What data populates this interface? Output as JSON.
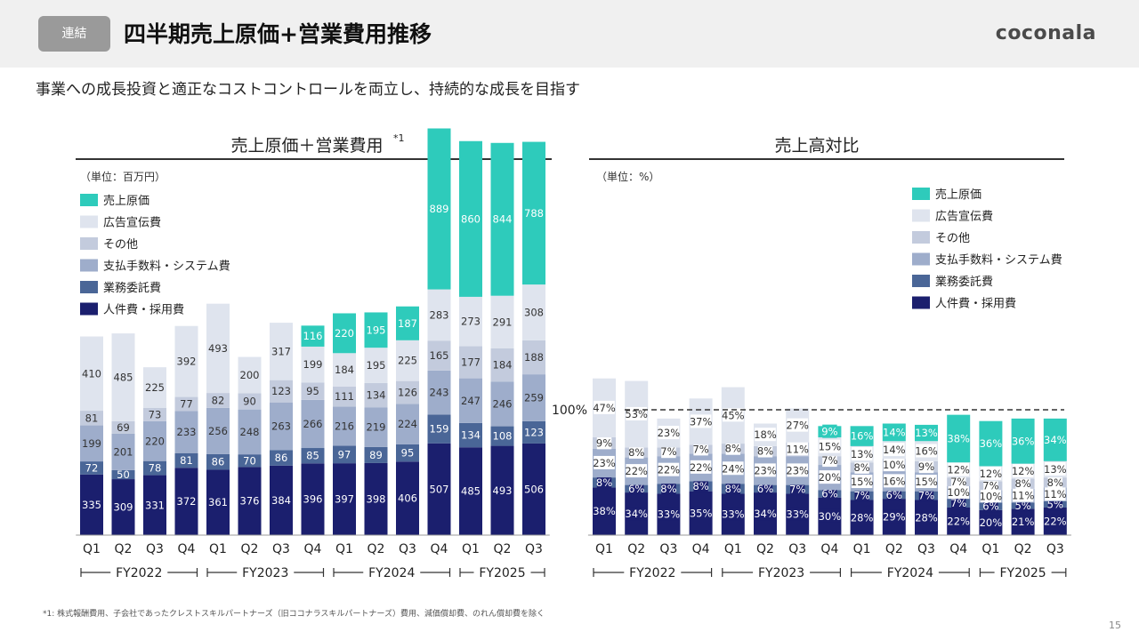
{
  "header": {
    "badge": "連結",
    "title": "四半期売上原価+営業費用推移",
    "logo": "coconala"
  },
  "subtitle": "事業への成長投資と適正なコストコントロールを両立し、持続的な成長を目指す",
  "footnote": "*1: 株式報酬費用、子会社であったクレストスキルパートナーズ（旧ココナラスキルパートナーズ）費用、減価償却費、のれん償却費を除く",
  "page_number": "15",
  "colors": {
    "cogs": "#2ecbbb",
    "ad": "#dfe4ee",
    "other": "#c3cbdd",
    "fees": "#9eadcb",
    "outsourcing": "#4a6697",
    "personnel": "#1b1f6e"
  },
  "chart_data": [
    {
      "type": "bar",
      "stacked": true,
      "title": "売上原価＋営業費用",
      "title_superscript": "*1",
      "unit_label": "（単位：百万円）",
      "categories": [
        "Q1",
        "Q2",
        "Q3",
        "Q4",
        "Q1",
        "Q2",
        "Q3",
        "Q4",
        "Q1",
        "Q2",
        "Q3",
        "Q4",
        "Q1",
        "Q2",
        "Q3"
      ],
      "fiscal_years": [
        {
          "label": "FY2022",
          "start": 0,
          "end": 3
        },
        {
          "label": "FY2023",
          "start": 4,
          "end": 7
        },
        {
          "label": "FY2024",
          "start": 8,
          "end": 11
        },
        {
          "label": "FY2025",
          "start": 12,
          "end": 14
        }
      ],
      "legend": [
        "売上原価",
        "広告宣伝費",
        "その他",
        "支払手数料・システム費",
        "業務委託費",
        "人件費・採用費"
      ],
      "series": [
        {
          "name": "人件費・採用費",
          "values": [
            335,
            309,
            331,
            372,
            361,
            376,
            384,
            396,
            397,
            398,
            406,
            507,
            485,
            493,
            506
          ],
          "labels": [
            "335",
            "309",
            "331",
            "372",
            "361",
            "376",
            "384",
            "396",
            "397",
            "398",
            "406",
            "507",
            "485",
            "493",
            "506"
          ]
        },
        {
          "name": "業務委託費",
          "values": [
            72,
            50,
            78,
            81,
            86,
            70,
            86,
            85,
            97,
            89,
            95,
            159,
            134,
            108,
            123
          ],
          "labels": [
            "72",
            "50",
            "78",
            "81",
            "86",
            "70",
            "86",
            "85",
            "97",
            "89",
            "95",
            "159",
            "134",
            "108",
            "123"
          ]
        },
        {
          "name": "支払手数料・システム費",
          "values": [
            199,
            201,
            220,
            233,
            256,
            248,
            263,
            266,
            216,
            219,
            224,
            243,
            247,
            246,
            259
          ],
          "labels": [
            "199",
            "201",
            "220",
            "233",
            "256",
            "248",
            "263",
            "266",
            "216",
            "219",
            "224",
            "243",
            "247",
            "246",
            "259"
          ]
        },
        {
          "name": "その他",
          "values": [
            81,
            69,
            73,
            77,
            82,
            90,
            123,
            95,
            111,
            134,
            126,
            165,
            177,
            184,
            188
          ],
          "labels": [
            "81",
            "69",
            "73",
            "77",
            "82",
            "90",
            "123",
            "95",
            "111",
            "134",
            "126",
            "165",
            "177",
            "184",
            "188"
          ]
        },
        {
          "name": "広告宣伝費",
          "values": [
            410,
            485,
            225,
            392,
            493,
            200,
            317,
            199,
            184,
            195,
            225,
            283,
            273,
            291,
            308
          ],
          "labels": [
            "410",
            "485",
            "225",
            "392",
            "493",
            "200",
            "317",
            "199",
            "184",
            "195",
            "225",
            "283",
            "273",
            "291",
            "308"
          ]
        },
        {
          "name": "売上原価",
          "values": [
            0,
            0,
            0,
            0,
            0,
            0,
            0,
            116,
            220,
            195,
            187,
            889,
            860,
            844,
            788
          ],
          "labels": [
            "",
            "",
            "",
            "",
            "",
            "",
            "",
            "116",
            "220",
            "195",
            "187",
            "889",
            "860",
            "844",
            "788"
          ]
        }
      ]
    },
    {
      "type": "bar",
      "stacked": true,
      "title": "売上高対比",
      "unit_label": "（単位：%）",
      "reference_line": {
        "value": 100,
        "label": "100%"
      },
      "categories": [
        "Q1",
        "Q2",
        "Q3",
        "Q4",
        "Q1",
        "Q2",
        "Q3",
        "Q4",
        "Q1",
        "Q2",
        "Q3",
        "Q4",
        "Q1",
        "Q2",
        "Q3"
      ],
      "fiscal_years": [
        {
          "label": "FY2022",
          "start": 0,
          "end": 3
        },
        {
          "label": "FY2023",
          "start": 4,
          "end": 7
        },
        {
          "label": "FY2024",
          "start": 8,
          "end": 11
        },
        {
          "label": "FY2025",
          "start": 12,
          "end": 14
        }
      ],
      "legend": [
        "売上原価",
        "広告宣伝費",
        "その他",
        "支払手数料・システム費",
        "業務委託費",
        "人件費・採用費"
      ],
      "series": [
        {
          "name": "人件費・採用費",
          "values": [
            38,
            34,
            33,
            35,
            33,
            34,
            33,
            30,
            28,
            29,
            28,
            22,
            20,
            21,
            22
          ],
          "labels": [
            "38%",
            "34%",
            "33%",
            "35%",
            "33%",
            "34%",
            "33%",
            "30%",
            "28%",
            "29%",
            "28%",
            "22%",
            "20%",
            "21%",
            "22%"
          ]
        },
        {
          "name": "業務委託費",
          "values": [
            8,
            6,
            8,
            8,
            8,
            6,
            7,
            6,
            7,
            6,
            7,
            7,
            6,
            5,
            5
          ],
          "labels": [
            "8%",
            "6%",
            "8%",
            "8%",
            "8%",
            "6%",
            "7%",
            "6%",
            "7%",
            "6%",
            "7%",
            "7%",
            "6%",
            "5%",
            "5%"
          ]
        },
        {
          "name": "支払手数料・システム費",
          "values": [
            23,
            22,
            22,
            22,
            24,
            23,
            23,
            20,
            15,
            16,
            15,
            10,
            10,
            11,
            11
          ],
          "labels": [
            "23%",
            "22%",
            "22%",
            "22%",
            "24%",
            "23%",
            "23%",
            "20%",
            "15%",
            "16%",
            "15%",
            "10%",
            "10%",
            "11%",
            "11%"
          ]
        },
        {
          "name": "その他",
          "values": [
            9,
            8,
            7,
            7,
            8,
            8,
            11,
            7,
            8,
            10,
            9,
            7,
            7,
            8,
            8
          ],
          "labels": [
            "9%",
            "8%",
            "7%",
            "7%",
            "8%",
            "8%",
            "11%",
            "7%",
            "8%",
            "10%",
            "9%",
            "7%",
            "7%",
            "8%",
            "8%"
          ]
        },
        {
          "name": "広告宣伝費",
          "values": [
            47,
            53,
            23,
            37,
            45,
            18,
            27,
            15,
            13,
            14,
            16,
            12,
            12,
            12,
            13
          ],
          "labels": [
            "47%",
            "53%",
            "23%",
            "37%",
            "45%",
            "18%",
            "27%",
            "15%",
            "13%",
            "14%",
            "16%",
            "12%",
            "12%",
            "12%",
            "13%"
          ]
        },
        {
          "name": "売上原価",
          "values": [
            0,
            0,
            0,
            0,
            0,
            0,
            0,
            9,
            16,
            14,
            13,
            38,
            36,
            36,
            34
          ],
          "labels": [
            "",
            "",
            "",
            "",
            "",
            "",
            "",
            "9%",
            "16%",
            "14%",
            "13%",
            "38%",
            "36%",
            "36%",
            "34%"
          ]
        }
      ]
    }
  ]
}
